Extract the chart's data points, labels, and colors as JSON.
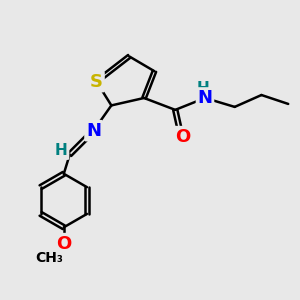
{
  "bg_color": "#e8e8e8",
  "atom_colors": {
    "S": "#c8b400",
    "N": "#0000ff",
    "O": "#ff0000",
    "C": "#000000",
    "H": "#008080"
  },
  "bond_color": "#000000",
  "bond_width": 1.8,
  "font_size_atoms": 13,
  "font_size_small": 11
}
